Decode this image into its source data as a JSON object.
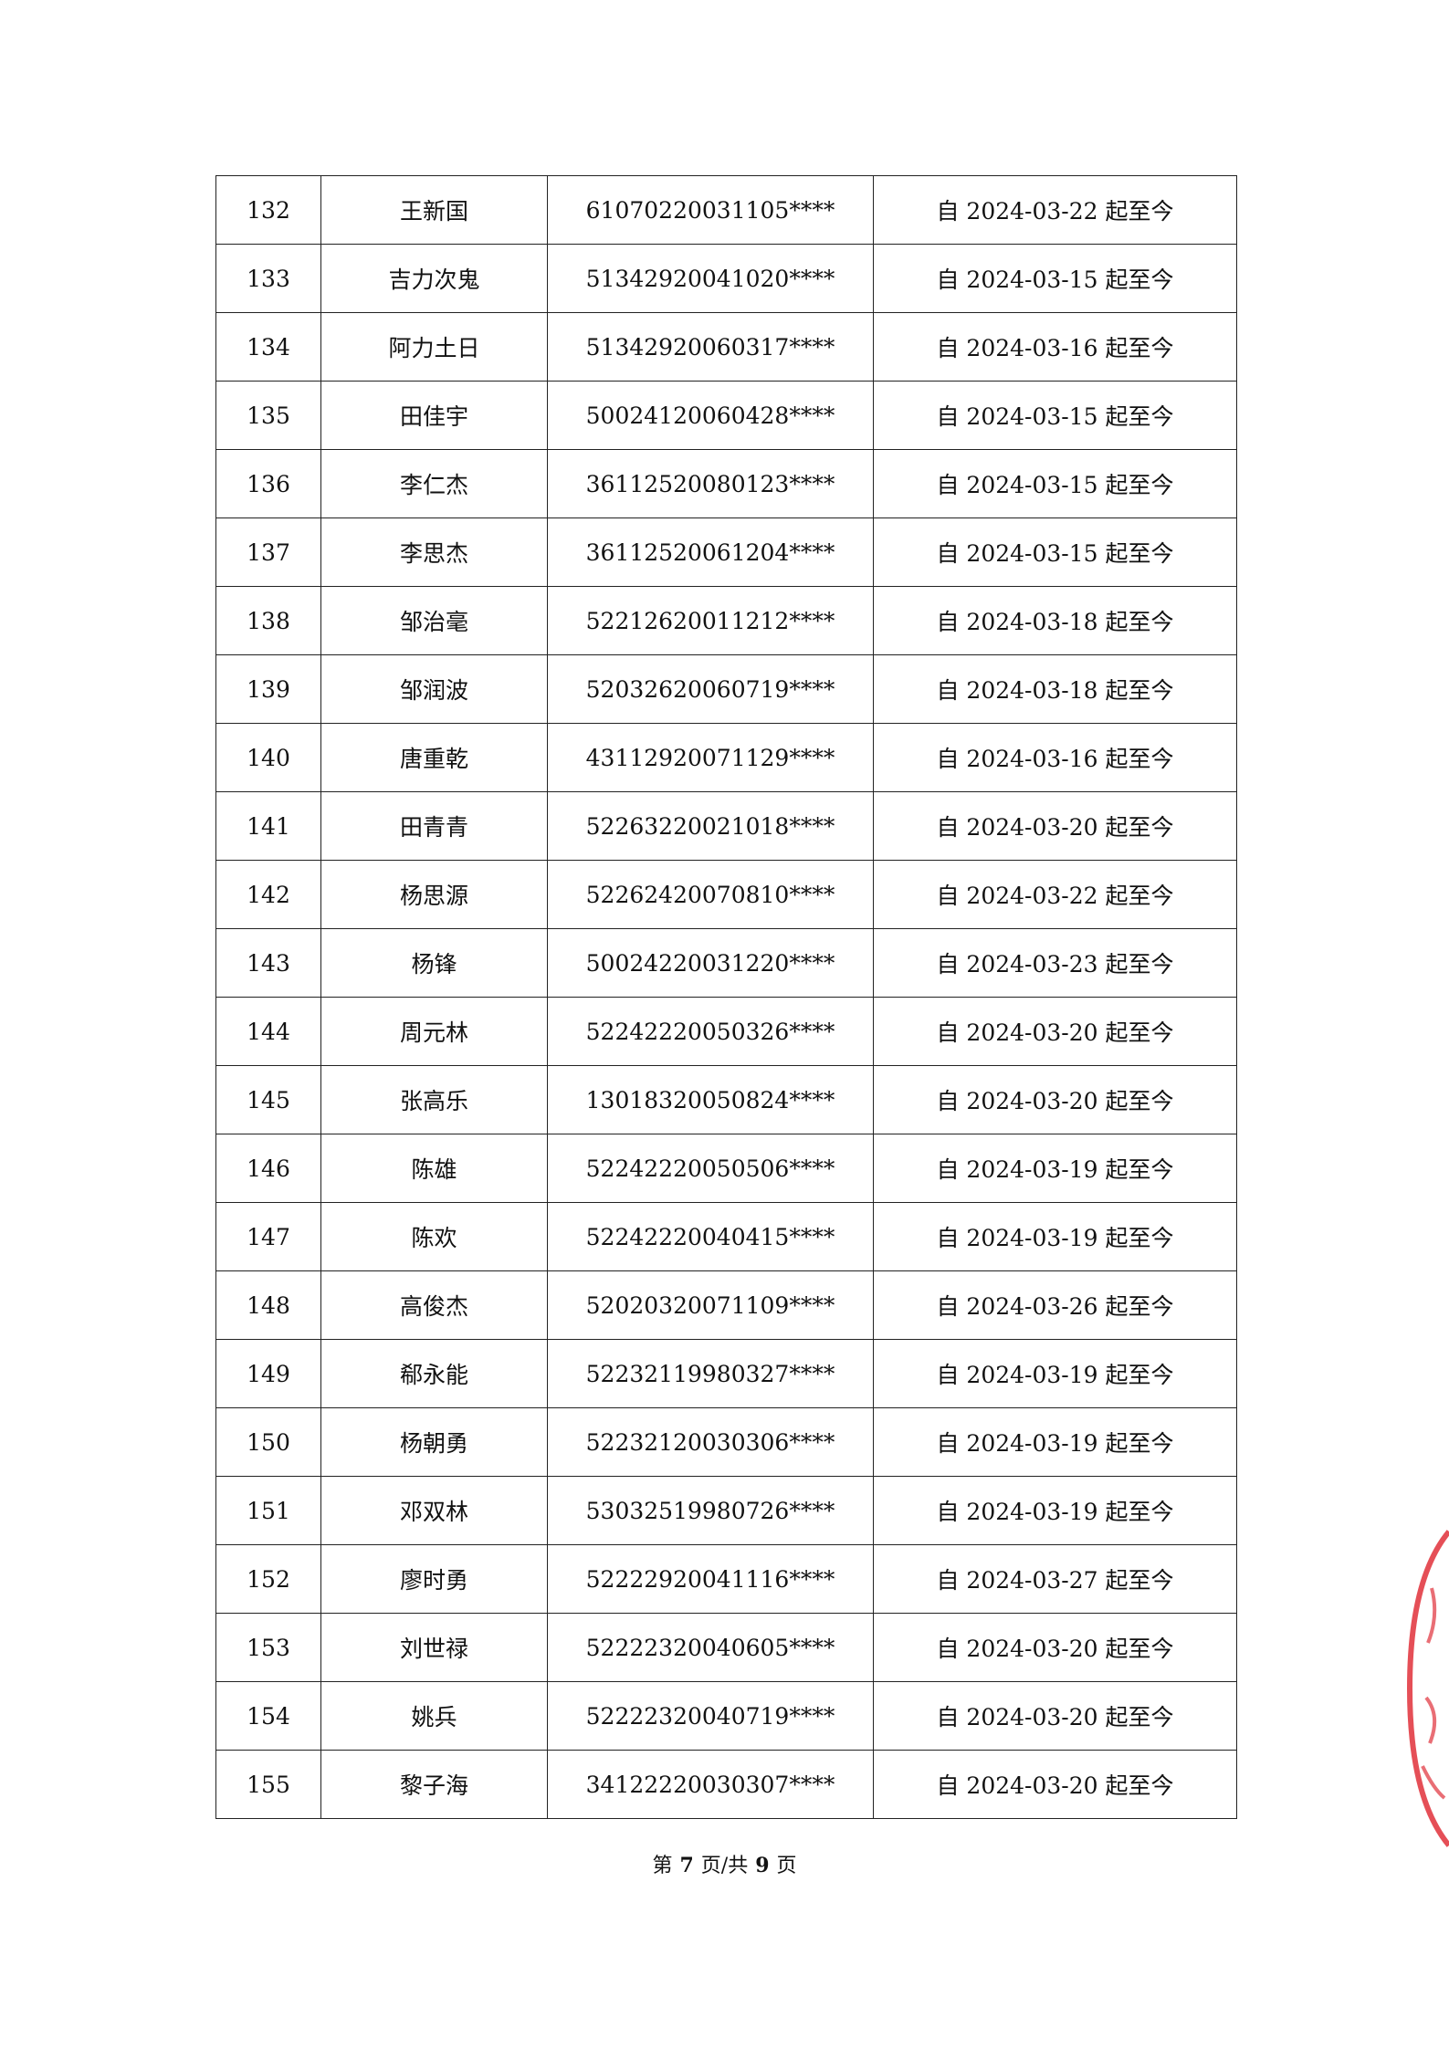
{
  "rows": [
    [
      "132",
      "王新国",
      "61070220031105****",
      "自 2024-03-22 起至今"
    ],
    [
      "133",
      "吉力次鬼",
      "51342920041020****",
      "自 2024-03-15 起至今"
    ],
    [
      "134",
      "阿力土日",
      "51342920060317****",
      "自 2024-03-16 起至今"
    ],
    [
      "135",
      "田佳宇",
      "50024120060428****",
      "自 2024-03-15 起至今"
    ],
    [
      "136",
      "李仁杰",
      "36112520080123****",
      "自 2024-03-15 起至今"
    ],
    [
      "137",
      "李思杰",
      "36112520061204****",
      "自 2024-03-15 起至今"
    ],
    [
      "138",
      "邹治毫",
      "52212620011212****",
      "自 2024-03-18 起至今"
    ],
    [
      "139",
      "邹润波",
      "52032620060719****",
      "自 2024-03-18 起至今"
    ],
    [
      "140",
      "唐重乾",
      "43112920071129****",
      "自 2024-03-16 起至今"
    ],
    [
      "141",
      "田青青",
      "52263220021018****",
      "自 2024-03-20 起至今"
    ],
    [
      "142",
      "杨思源",
      "52262420070810****",
      "自 2024-03-22 起至今"
    ],
    [
      "143",
      "杨锋",
      "50024220031220****",
      "自 2024-03-23 起至今"
    ],
    [
      "144",
      "周元林",
      "52242220050326****",
      "自 2024-03-20 起至今"
    ],
    [
      "145",
      "张高乐",
      "13018320050824****",
      "自 2024-03-20 起至今"
    ],
    [
      "146",
      "陈雄",
      "52242220050506****",
      "自 2024-03-19 起至今"
    ],
    [
      "147",
      "陈欢",
      "52242220040415****",
      "自 2024-03-19 起至今"
    ],
    [
      "148",
      "高俊杰",
      "52020320071109****",
      "自 2024-03-26 起至今"
    ],
    [
      "149",
      "郗永能",
      "52232119980327****",
      "自 2024-03-19 起至今"
    ],
    [
      "150",
      "杨朝勇",
      "52232120030306****",
      "自 2024-03-19 起至今"
    ],
    [
      "151",
      "邓双林",
      "53032519980726****",
      "自 2024-03-19 起至今"
    ],
    [
      "152",
      "廖时勇",
      "52222920041116****",
      "自 2024-03-27 起至今"
    ],
    [
      "153",
      "刘世禄",
      "52222320040605****",
      "自 2024-03-20 起至今"
    ],
    [
      "154",
      "姚兵",
      "52222320040719****",
      "自 2024-03-20 起至今"
    ],
    [
      "155",
      "黎子海",
      "34122220030307****",
      "自 2024-03-20 起至今"
    ]
  ],
  "footer": {
    "prefix": "第",
    "page": "7",
    "middle": "页/共",
    "total": "9",
    "suffix": "页"
  },
  "stamp": {
    "color": "#e0303a"
  }
}
